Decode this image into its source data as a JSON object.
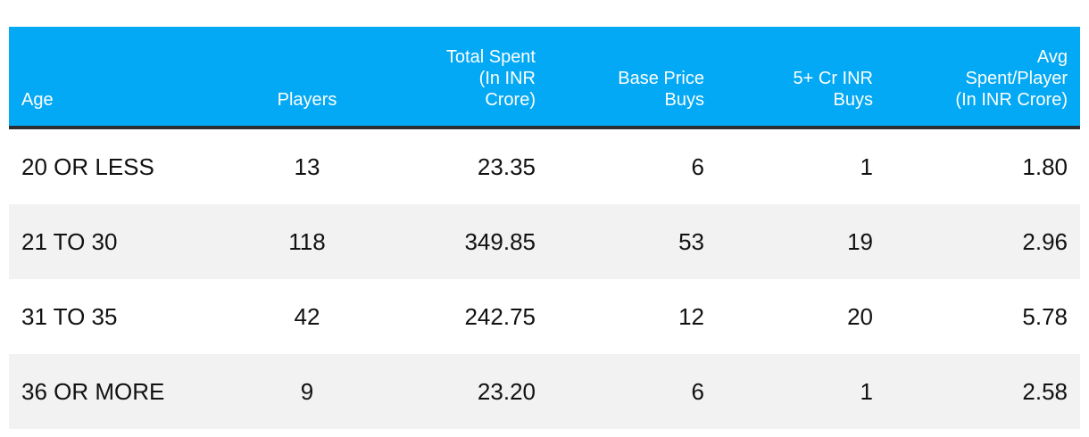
{
  "table": {
    "columns": [
      {
        "lines": [
          "Age"
        ]
      },
      {
        "lines": [
          "Players"
        ]
      },
      {
        "lines": [
          "Total Spent",
          "(In INR",
          "Crore)"
        ]
      },
      {
        "lines": [
          "Base Price",
          "Buys"
        ]
      },
      {
        "lines": [
          "5+ Cr INR",
          "Buys"
        ]
      },
      {
        "lines": [
          "Avg",
          "Spent/Player",
          "(In INR Crore)"
        ]
      }
    ],
    "rows": [
      [
        "20 OR LESS",
        "13",
        "23.35",
        "6",
        "1",
        "1.80"
      ],
      [
        "21 TO 30",
        "118",
        "349.85",
        "53",
        "19",
        "2.96"
      ],
      [
        "31 TO 35",
        "42",
        "242.75",
        "12",
        "20",
        "5.78"
      ],
      [
        "36 OR MORE",
        "9",
        "23.20",
        "6",
        "1",
        "2.58"
      ]
    ]
  }
}
